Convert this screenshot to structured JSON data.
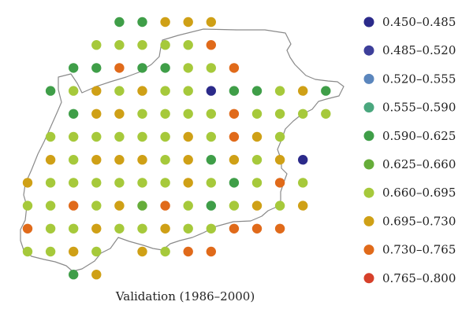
{
  "caption": "Validation (1986–2000)",
  "legend": [
    {
      "range": "0.450–0.485",
      "color": "#2b2a8a"
    },
    {
      "range": "0.485–0.520",
      "color": "#3d3f9a"
    },
    {
      "range": "0.520–0.555",
      "color": "#5b86bd"
    },
    {
      "range": "0.555–0.590",
      "color": "#4aa77e"
    },
    {
      "range": "0.590–0.625",
      "color": "#3f9e48"
    },
    {
      "range": "0.625–0.660",
      "color": "#66ad3a"
    },
    {
      "range": "0.660–0.695",
      "color": "#a6c93b"
    },
    {
      "range": "0.695–0.730",
      "color": "#cfa016"
    },
    {
      "range": "0.730–0.765",
      "color": "#e06a1a"
    },
    {
      "range": "0.765–0.800",
      "color": "#d6402a"
    }
  ],
  "grid": {
    "columns": 15,
    "rows": 12,
    "cells": [
      [
        4,
        0,
        4
      ],
      [
        5,
        0,
        4
      ],
      [
        6,
        0,
        7
      ],
      [
        7,
        0,
        7
      ],
      [
        8,
        0,
        7
      ],
      [
        3,
        1,
        6
      ],
      [
        4,
        1,
        6
      ],
      [
        5,
        1,
        6
      ],
      [
        6,
        1,
        6
      ],
      [
        7,
        1,
        6
      ],
      [
        8,
        1,
        8
      ],
      [
        2,
        2,
        4
      ],
      [
        3,
        2,
        4
      ],
      [
        4,
        2,
        8
      ],
      [
        5,
        2,
        4
      ],
      [
        6,
        2,
        4
      ],
      [
        7,
        2,
        6
      ],
      [
        8,
        2,
        6
      ],
      [
        9,
        2,
        8
      ],
      [
        1,
        3,
        4
      ],
      [
        2,
        3,
        6
      ],
      [
        3,
        3,
        7
      ],
      [
        4,
        3,
        6
      ],
      [
        5,
        3,
        7
      ],
      [
        6,
        3,
        6
      ],
      [
        7,
        3,
        6
      ],
      [
        8,
        3,
        0
      ],
      [
        9,
        3,
        4
      ],
      [
        10,
        3,
        4
      ],
      [
        11,
        3,
        6
      ],
      [
        12,
        3,
        7
      ],
      [
        13,
        3,
        4
      ],
      [
        2,
        4,
        4
      ],
      [
        3,
        4,
        7
      ],
      [
        4,
        4,
        7
      ],
      [
        5,
        4,
        6
      ],
      [
        6,
        4,
        6
      ],
      [
        7,
        4,
        6
      ],
      [
        8,
        4,
        6
      ],
      [
        9,
        4,
        8
      ],
      [
        10,
        4,
        6
      ],
      [
        11,
        4,
        6
      ],
      [
        12,
        4,
        6
      ],
      [
        13,
        4,
        6
      ],
      [
        1,
        5,
        6
      ],
      [
        2,
        5,
        6
      ],
      [
        3,
        5,
        6
      ],
      [
        4,
        5,
        6
      ],
      [
        5,
        5,
        6
      ],
      [
        6,
        5,
        6
      ],
      [
        7,
        5,
        7
      ],
      [
        8,
        5,
        6
      ],
      [
        9,
        5,
        8
      ],
      [
        10,
        5,
        7
      ],
      [
        11,
        5,
        6
      ],
      [
        1,
        6,
        7
      ],
      [
        2,
        6,
        6
      ],
      [
        3,
        6,
        7
      ],
      [
        4,
        6,
        7
      ],
      [
        5,
        6,
        7
      ],
      [
        6,
        6,
        6
      ],
      [
        7,
        6,
        7
      ],
      [
        8,
        6,
        4
      ],
      [
        9,
        6,
        7
      ],
      [
        10,
        6,
        6
      ],
      [
        11,
        6,
        7
      ],
      [
        12,
        6,
        0
      ],
      [
        0,
        7,
        7
      ],
      [
        1,
        7,
        6
      ],
      [
        2,
        7,
        6
      ],
      [
        3,
        7,
        6
      ],
      [
        4,
        7,
        6
      ],
      [
        5,
        7,
        6
      ],
      [
        6,
        7,
        6
      ],
      [
        7,
        7,
        7
      ],
      [
        8,
        7,
        6
      ],
      [
        9,
        7,
        4
      ],
      [
        10,
        7,
        6
      ],
      [
        11,
        7,
        8
      ],
      [
        12,
        7,
        6
      ],
      [
        0,
        8,
        6
      ],
      [
        1,
        8,
        6
      ],
      [
        2,
        8,
        8
      ],
      [
        3,
        8,
        6
      ],
      [
        4,
        8,
        7
      ],
      [
        5,
        8,
        5
      ],
      [
        6,
        8,
        8
      ],
      [
        7,
        8,
        6
      ],
      [
        8,
        8,
        4
      ],
      [
        9,
        8,
        6
      ],
      [
        10,
        8,
        7
      ],
      [
        11,
        8,
        6
      ],
      [
        12,
        8,
        7
      ],
      [
        0,
        9,
        8
      ],
      [
        1,
        9,
        6
      ],
      [
        2,
        9,
        6
      ],
      [
        3,
        9,
        7
      ],
      [
        4,
        9,
        6
      ],
      [
        5,
        9,
        6
      ],
      [
        6,
        9,
        7
      ],
      [
        7,
        9,
        6
      ],
      [
        8,
        9,
        6
      ],
      [
        9,
        9,
        8
      ],
      [
        10,
        9,
        8
      ],
      [
        11,
        9,
        8
      ],
      [
        0,
        10,
        6
      ],
      [
        1,
        10,
        6
      ],
      [
        2,
        10,
        7
      ],
      [
        3,
        10,
        6
      ],
      [
        5,
        10,
        7
      ],
      [
        6,
        10,
        6
      ],
      [
        7,
        10,
        8
      ],
      [
        8,
        10,
        8
      ],
      [
        2,
        11,
        4
      ],
      [
        3,
        11,
        7
      ]
    ]
  }
}
